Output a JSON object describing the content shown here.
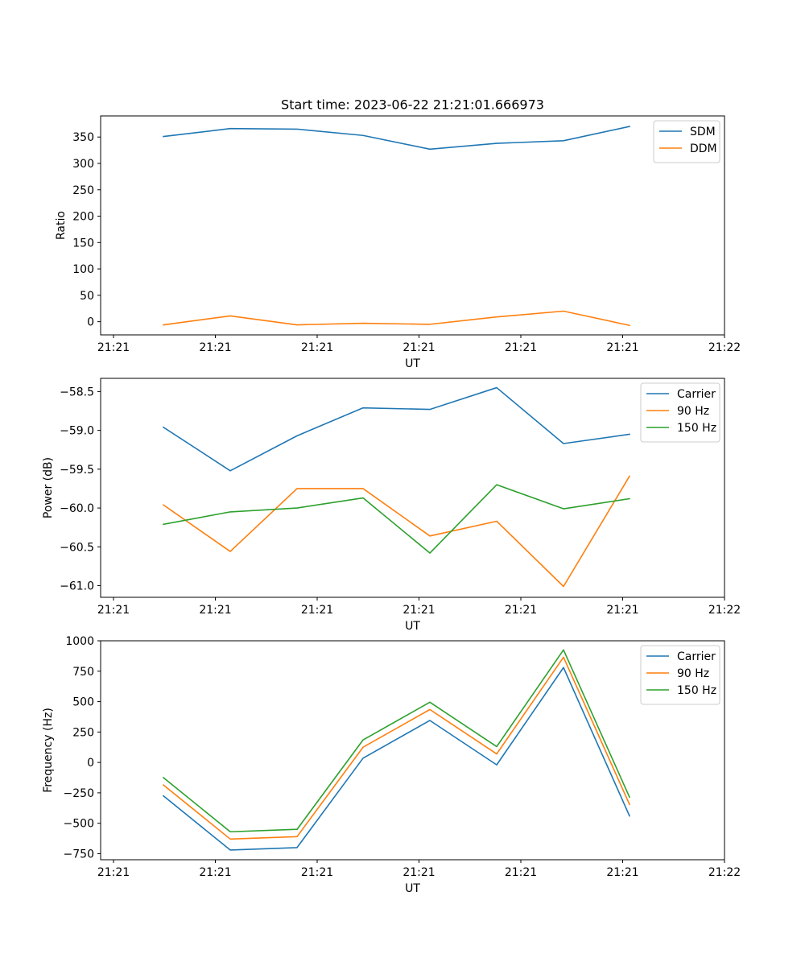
{
  "title": "Start time: 2023-06-22 21:21:01.666973",
  "colors": {
    "blue": "#1f77b4",
    "orange": "#ff7f0e",
    "green": "#2ca02c"
  },
  "chart_data": [
    {
      "type": "line",
      "xlabel": "UT",
      "ylabel": "Ratio",
      "x_tick_labels": [
        "21:21",
        "21:21",
        "21:21",
        "21:21",
        "21:21",
        "21:21",
        "21:22"
      ],
      "y_ticks": [
        0,
        50,
        100,
        150,
        200,
        250,
        300,
        350
      ],
      "ylim": [
        -25,
        390
      ],
      "legend_position": "upper right",
      "series": [
        {
          "name": "SDM",
          "color": "#1f77b4",
          "values": [
            351,
            366,
            365,
            353,
            327,
            338,
            343,
            370
          ]
        },
        {
          "name": "DDM",
          "color": "#ff7f0e",
          "values": [
            -6,
            11,
            -6,
            -3,
            -5,
            9,
            20,
            -7
          ]
        }
      ]
    },
    {
      "type": "line",
      "xlabel": "UT",
      "ylabel": "Power (dB)",
      "x_tick_labels": [
        "21:21",
        "21:21",
        "21:21",
        "21:21",
        "21:21",
        "21:21",
        "21:22"
      ],
      "y_ticks": [
        -61.0,
        -60.5,
        -60.0,
        -59.5,
        -59.0,
        -58.5
      ],
      "y_decimals": 1,
      "ylim": [
        -61.15,
        -58.33
      ],
      "legend_position": "upper right",
      "series": [
        {
          "name": "Carrier",
          "color": "#1f77b4",
          "values": [
            -58.96,
            -59.52,
            -59.07,
            -58.71,
            -58.73,
            -58.45,
            -59.17,
            -59.05
          ]
        },
        {
          "name": "90 Hz",
          "color": "#ff7f0e",
          "values": [
            -59.96,
            -60.56,
            -59.75,
            -59.75,
            -60.36,
            -60.17,
            -61.01,
            -59.59
          ]
        },
        {
          "name": "150 Hz",
          "color": "#2ca02c",
          "values": [
            -60.21,
            -60.05,
            -60.0,
            -59.87,
            -60.58,
            -59.7,
            -60.01,
            -59.88
          ]
        }
      ]
    },
    {
      "type": "line",
      "xlabel": "UT",
      "ylabel": "Frequency (Hz)",
      "x_tick_labels": [
        "21:21",
        "21:21",
        "21:21",
        "21:21",
        "21:21",
        "21:21",
        "21:22"
      ],
      "y_ticks": [
        -750,
        -500,
        -250,
        0,
        250,
        500,
        750,
        1000
      ],
      "ylim": [
        -800,
        1000
      ],
      "legend_position": "upper right",
      "series": [
        {
          "name": "Carrier",
          "color": "#1f77b4",
          "values": [
            -275,
            -720,
            -700,
            35,
            345,
            -20,
            780,
            -440
          ]
        },
        {
          "name": "90 Hz",
          "color": "#ff7f0e",
          "values": [
            -185,
            -630,
            -610,
            125,
            435,
            70,
            865,
            -345
          ]
        },
        {
          "name": "150 Hz",
          "color": "#2ca02c",
          "values": [
            -125,
            -570,
            -550,
            185,
            495,
            130,
            925,
            -285
          ]
        }
      ]
    }
  ]
}
